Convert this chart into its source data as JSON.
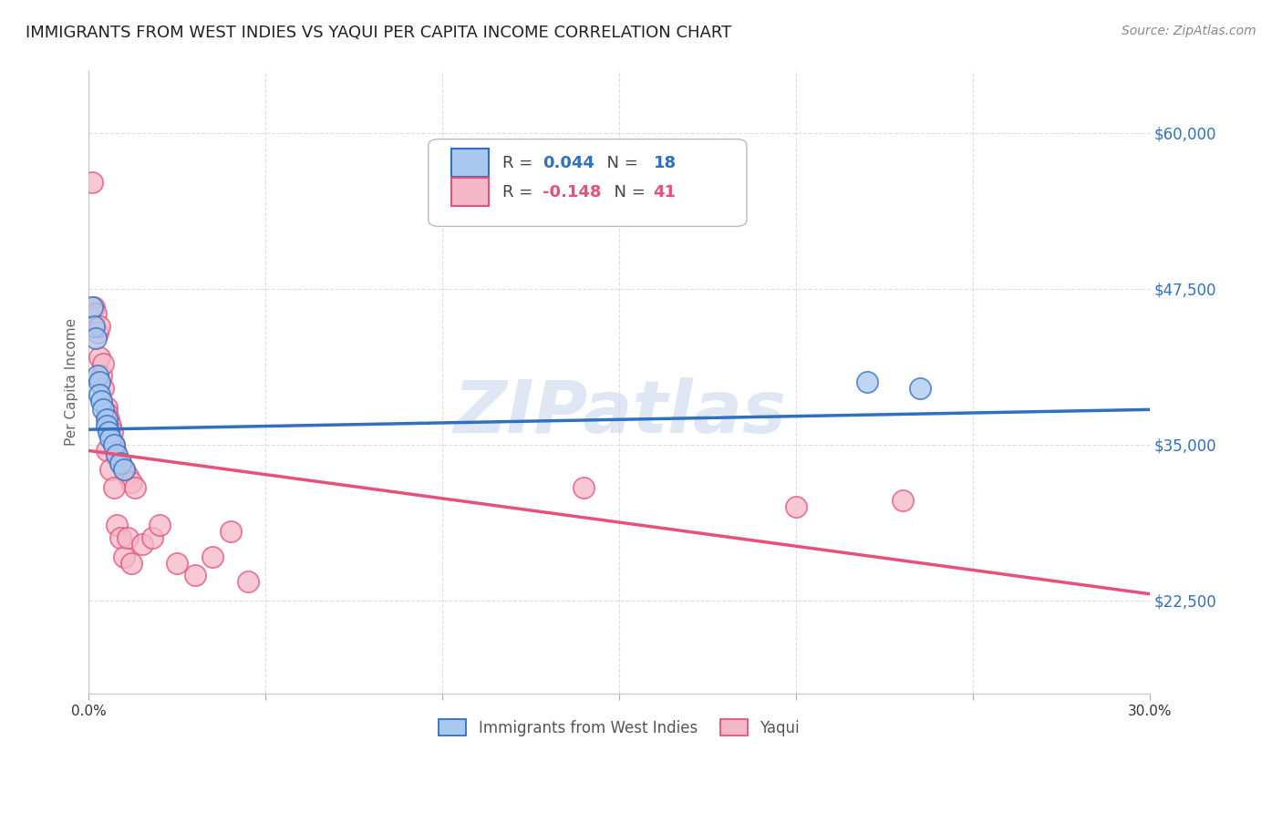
{
  "title": "IMMIGRANTS FROM WEST INDIES VS YAQUI PER CAPITA INCOME CORRELATION CHART",
  "source": "Source: ZipAtlas.com",
  "ylabel": "Per Capita Income",
  "yticks": [
    22500,
    35000,
    47500,
    60000
  ],
  "ytick_labels": [
    "$22,500",
    "$35,000",
    "$47,500",
    "$60,000"
  ],
  "legend1_r": "0.044",
  "legend1_n": "18",
  "legend2_r": "-0.148",
  "legend2_n": "41",
  "legend_label1": "Immigrants from West Indies",
  "legend_label2": "Yaqui",
  "blue_color": "#A8C8F0",
  "pink_color": "#F5B8C8",
  "blue_line_color": "#3070C0",
  "pink_line_color": "#E8507A",
  "background_color": "#FFFFFF",
  "grid_color": "#DDDDDD",
  "watermark": "ZIPatlas",
  "blue_points": [
    [
      0.1,
      46000
    ],
    [
      0.15,
      44500
    ],
    [
      0.2,
      43500
    ],
    [
      0.25,
      40500
    ],
    [
      0.3,
      40000
    ],
    [
      0.3,
      39000
    ],
    [
      0.35,
      38500
    ],
    [
      0.4,
      37800
    ],
    [
      0.5,
      37000
    ],
    [
      0.5,
      36500
    ],
    [
      0.55,
      36000
    ],
    [
      0.6,
      35500
    ],
    [
      0.7,
      35000
    ],
    [
      0.8,
      34200
    ],
    [
      0.9,
      33500
    ],
    [
      1.0,
      33000
    ],
    [
      22.0,
      40000
    ],
    [
      23.5,
      39500
    ]
  ],
  "pink_points": [
    [
      0.1,
      56000
    ],
    [
      0.15,
      46000
    ],
    [
      0.2,
      45500
    ],
    [
      0.25,
      44000
    ],
    [
      0.3,
      42000
    ],
    [
      0.35,
      40500
    ],
    [
      0.4,
      39500
    ],
    [
      0.5,
      38000
    ],
    [
      0.5,
      37500
    ],
    [
      0.55,
      37000
    ],
    [
      0.6,
      36500
    ],
    [
      0.65,
      36000
    ],
    [
      0.7,
      35000
    ],
    [
      0.75,
      34500
    ],
    [
      0.8,
      34000
    ],
    [
      0.9,
      33500
    ],
    [
      1.0,
      33000
    ],
    [
      1.1,
      32500
    ],
    [
      1.2,
      32000
    ],
    [
      1.3,
      31500
    ],
    [
      0.3,
      44500
    ],
    [
      0.4,
      41500
    ],
    [
      0.5,
      34500
    ],
    [
      0.6,
      33000
    ],
    [
      0.7,
      31500
    ],
    [
      0.8,
      28500
    ],
    [
      0.9,
      27500
    ],
    [
      1.0,
      26000
    ],
    [
      1.1,
      27500
    ],
    [
      1.2,
      25500
    ],
    [
      1.5,
      27000
    ],
    [
      1.8,
      27500
    ],
    [
      2.0,
      28500
    ],
    [
      2.5,
      25500
    ],
    [
      3.0,
      24500
    ],
    [
      3.5,
      26000
    ],
    [
      4.0,
      28000
    ],
    [
      4.5,
      24000
    ],
    [
      14.0,
      31500
    ],
    [
      20.0,
      30000
    ],
    [
      23.0,
      30500
    ]
  ],
  "blue_line_x": [
    0,
    30
  ],
  "blue_line_y": [
    36200,
    37800
  ],
  "pink_line_x": [
    0,
    30
  ],
  "pink_line_y": [
    34500,
    23000
  ],
  "xlim": [
    0,
    30
  ],
  "ylim": [
    15000,
    65000
  ],
  "xtick_positions": [
    0,
    5,
    10,
    15,
    20,
    25,
    30
  ],
  "xtick_labels": [
    "0.0%",
    "",
    "",
    "",
    "",
    "",
    "30.0%"
  ]
}
